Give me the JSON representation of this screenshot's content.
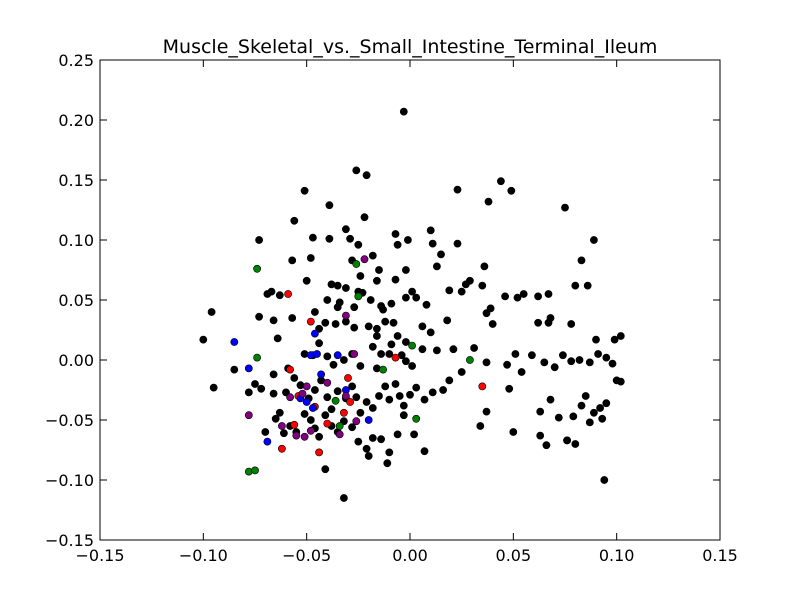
{
  "chart_data": {
    "type": "scatter",
    "title": "Muscle_Skeletal_vs._Small_Intestine_Terminal_Ileum",
    "xlabel": "",
    "ylabel": "",
    "xlim": [
      -0.15,
      0.15
    ],
    "ylim": [
      -0.15,
      0.25
    ],
    "grid": false,
    "x_ticks": [
      -0.15,
      -0.1,
      -0.05,
      0.0,
      0.05,
      0.1,
      0.15
    ],
    "x_tick_labels": [
      "−0.15",
      "−0.10",
      "−0.05",
      "0.00",
      "0.05",
      "0.10",
      "0.15"
    ],
    "y_ticks": [
      -0.15,
      -0.1,
      -0.05,
      0.0,
      0.05,
      0.1,
      0.15,
      0.2,
      0.25
    ],
    "y_tick_labels": [
      "−0.15",
      "−0.10",
      "−0.05",
      "0.00",
      "0.05",
      "0.10",
      "0.15",
      "0.20",
      "0.25"
    ],
    "series": [
      {
        "color": "#000000",
        "points": [
          [
            -0.003,
            0.207
          ],
          [
            -0.026,
            0.158
          ],
          [
            -0.021,
            0.154
          ],
          [
            -0.051,
            0.141
          ],
          [
            -0.039,
            0.129
          ],
          [
            0.044,
            0.149
          ],
          [
            0.023,
            0.142
          ],
          [
            0.049,
            0.141
          ],
          [
            0.038,
            0.132
          ],
          [
            0.075,
            0.127
          ],
          [
            -0.056,
            0.116
          ],
          [
            -0.022,
            0.119
          ],
          [
            -0.039,
            0.101
          ],
          [
            -0.031,
            0.109
          ],
          [
            -0.029,
            0.101
          ],
          [
            -0.025,
            0.096
          ],
          [
            -0.047,
            0.102
          ],
          [
            -0.073,
            0.1
          ],
          [
            -0.007,
            0.105
          ],
          [
            -0.006,
            0.096
          ],
          [
            0.01,
            0.108
          ],
          [
            0.011,
            0.097
          ],
          [
            0.023,
            0.097
          ],
          [
            -0.001,
            0.1
          ],
          [
            0.015,
            0.088
          ],
          [
            0.013,
            0.078
          ],
          [
            0.089,
            0.1
          ],
          [
            0.083,
            0.083
          ],
          [
            -0.057,
            0.083
          ],
          [
            -0.048,
            0.085
          ],
          [
            -0.028,
            0.083
          ],
          [
            -0.018,
            0.087
          ],
          [
            -0.015,
            0.075
          ],
          [
            -0.024,
            0.07
          ],
          [
            -0.016,
            0.066
          ],
          [
            -0.002,
            0.075
          ],
          [
            -0.007,
            0.067
          ],
          [
            0.036,
            0.078
          ],
          [
            0.029,
            0.066
          ],
          [
            0.027,
            0.063
          ],
          [
            0.035,
            0.062
          ],
          [
            0.025,
            0.057
          ],
          [
            0.046,
            0.053
          ],
          [
            0.052,
            0.052
          ],
          [
            0.055,
            0.055
          ],
          [
            0.062,
            0.053
          ],
          [
            0.067,
            0.055
          ],
          [
            0.08,
            0.062
          ],
          [
            0.086,
            0.062
          ],
          [
            -0.067,
            0.057
          ],
          [
            -0.069,
            0.055
          ],
          [
            -0.063,
            0.054
          ],
          [
            -0.05,
            0.066
          ],
          [
            -0.038,
            0.063
          ],
          [
            -0.035,
            0.062
          ],
          [
            -0.031,
            0.06
          ],
          [
            -0.025,
            0.057
          ],
          [
            -0.023,
            0.056
          ],
          [
            -0.04,
            0.05
          ],
          [
            -0.034,
            0.048
          ],
          [
            -0.035,
            0.044
          ],
          [
            -0.027,
            0.044
          ],
          [
            -0.019,
            0.05
          ],
          [
            -0.014,
            0.045
          ],
          [
            -0.013,
            0.042
          ],
          [
            -0.009,
            0.047
          ],
          [
            -0.002,
            0.052
          ],
          [
            0.003,
            0.052
          ],
          [
            0.001,
            0.057
          ],
          [
            0.008,
            0.046
          ],
          [
            0.019,
            0.058
          ],
          [
            0.039,
            0.043
          ],
          [
            0.037,
            0.039
          ],
          [
            0.067,
            0.031
          ],
          [
            0.068,
            0.035
          ],
          [
            0.078,
            0.03
          ],
          [
            -0.1,
            0.017
          ],
          [
            -0.096,
            0.04
          ],
          [
            -0.073,
            0.036
          ],
          [
            -0.066,
            0.033
          ],
          [
            -0.057,
            0.035
          ],
          [
            -0.046,
            0.04
          ],
          [
            -0.044,
            0.026
          ],
          [
            -0.041,
            0.031
          ],
          [
            -0.036,
            0.03
          ],
          [
            -0.031,
            0.032
          ],
          [
            -0.027,
            0.027
          ],
          [
            -0.02,
            0.028
          ],
          [
            -0.016,
            0.02
          ],
          [
            -0.016,
            0.026
          ],
          [
            -0.012,
            0.032
          ],
          [
            -0.008,
            0.031
          ],
          [
            -0.006,
            0.02
          ],
          [
            -0.002,
            0.015
          ],
          [
            0.006,
            0.028
          ],
          [
            0.01,
            0.023
          ],
          [
            0.018,
            0.033
          ],
          [
            0.031,
            0.01
          ],
          [
            0.04,
            0.03
          ],
          [
            0.062,
            0.031
          ],
          [
            0.09,
            0.017
          ],
          [
            0.099,
            0.017
          ],
          [
            0.102,
            0.02
          ],
          [
            -0.095,
            -0.023
          ],
          [
            -0.085,
            -0.008
          ],
          [
            -0.075,
            -0.02
          ],
          [
            -0.066,
            -0.012
          ],
          [
            -0.064,
            0.018
          ],
          [
            -0.059,
            -0.007
          ],
          [
            -0.051,
            0.005
          ],
          [
            -0.047,
            0.004
          ],
          [
            -0.044,
            0.014
          ],
          [
            -0.04,
            0.003
          ],
          [
            -0.037,
            -0.004
          ],
          [
            -0.032,
            0.0
          ],
          [
            -0.028,
            0.005
          ],
          [
            -0.024,
            -0.005
          ],
          [
            -0.018,
            0.011
          ],
          [
            -0.016,
            -0.007
          ],
          [
            -0.014,
            0.005
          ],
          [
            -0.01,
            0.005
          ],
          [
            -0.009,
            0.013
          ],
          [
            -0.004,
            0.004
          ],
          [
            -0.002,
            -0.001
          ],
          [
            0.001,
            -0.005
          ],
          [
            0.006,
            0.009
          ],
          [
            0.013,
            0.008
          ],
          [
            0.021,
            0.009
          ],
          [
            0.025,
            -0.01
          ],
          [
            0.037,
            -0.002
          ],
          [
            0.047,
            -0.004
          ],
          [
            0.051,
            0.005
          ],
          [
            0.054,
            -0.01
          ],
          [
            0.059,
            0.004
          ],
          [
            0.065,
            -0.002
          ],
          [
            0.07,
            -0.006
          ],
          [
            0.074,
            0.004
          ],
          [
            0.078,
            -0.001
          ],
          [
            0.082,
            0.0
          ],
          [
            0.087,
            -0.002
          ],
          [
            0.091,
            0.005
          ],
          [
            0.095,
            0.002
          ],
          [
            0.098,
            -0.003
          ],
          [
            0.1,
            -0.017
          ],
          [
            0.102,
            -0.018
          ],
          [
            -0.078,
            -0.027
          ],
          [
            -0.072,
            -0.024
          ],
          [
            -0.066,
            -0.028
          ],
          [
            -0.063,
            -0.044
          ],
          [
            -0.06,
            -0.027
          ],
          [
            -0.056,
            -0.015
          ],
          [
            -0.053,
            -0.021
          ],
          [
            -0.049,
            -0.032
          ],
          [
            -0.046,
            -0.025
          ],
          [
            -0.043,
            -0.017
          ],
          [
            -0.04,
            -0.031
          ],
          [
            -0.038,
            -0.041
          ],
          [
            -0.035,
            -0.026
          ],
          [
            -0.031,
            -0.032
          ],
          [
            -0.028,
            -0.022
          ],
          [
            -0.026,
            -0.031
          ],
          [
            -0.024,
            -0.044
          ],
          [
            -0.021,
            -0.035
          ],
          [
            -0.018,
            -0.04
          ],
          [
            -0.015,
            -0.03
          ],
          [
            -0.012,
            -0.022
          ],
          [
            -0.01,
            -0.033
          ],
          [
            -0.007,
            -0.02
          ],
          [
            -0.005,
            -0.03
          ],
          [
            -0.003,
            -0.038
          ],
          [
            0.0,
            -0.029
          ],
          [
            0.003,
            -0.023
          ],
          [
            0.007,
            -0.033
          ],
          [
            0.011,
            -0.027
          ],
          [
            0.016,
            -0.025
          ],
          [
            0.019,
            -0.017
          ],
          [
            0.034,
            -0.055
          ],
          [
            0.037,
            -0.043
          ],
          [
            0.048,
            -0.024
          ],
          [
            0.05,
            -0.06
          ],
          [
            0.063,
            -0.043
          ],
          [
            0.066,
            -0.071
          ],
          [
            0.063,
            -0.063
          ],
          [
            0.068,
            -0.033
          ],
          [
            0.072,
            -0.048
          ],
          [
            0.076,
            -0.067
          ],
          [
            0.079,
            -0.047
          ],
          [
            0.083,
            -0.038
          ],
          [
            0.085,
            -0.03
          ],
          [
            0.087,
            -0.052
          ],
          [
            0.089,
            -0.044
          ],
          [
            0.092,
            -0.04
          ],
          [
            0.093,
            -0.049
          ],
          [
            0.095,
            -0.036
          ],
          [
            -0.07,
            -0.06
          ],
          [
            -0.065,
            -0.049
          ],
          [
            -0.061,
            -0.061
          ],
          [
            -0.058,
            -0.055
          ],
          [
            -0.055,
            -0.06
          ],
          [
            -0.051,
            -0.045
          ],
          [
            -0.048,
            -0.05
          ],
          [
            -0.046,
            -0.057
          ],
          [
            -0.044,
            -0.064
          ],
          [
            -0.041,
            -0.046
          ],
          [
            -0.038,
            -0.055
          ],
          [
            -0.035,
            -0.06
          ],
          [
            -0.032,
            -0.051
          ],
          [
            -0.028,
            -0.056
          ],
          [
            -0.025,
            -0.068
          ],
          [
            -0.021,
            -0.074
          ],
          [
            -0.018,
            -0.065
          ],
          [
            -0.014,
            -0.066
          ],
          [
            -0.01,
            -0.077
          ],
          [
            -0.006,
            -0.062
          ],
          [
            -0.003,
            -0.046
          ],
          [
            0.002,
            -0.062
          ],
          [
            0.007,
            -0.076
          ],
          [
            -0.041,
            -0.091
          ],
          [
            -0.032,
            -0.115
          ],
          [
            -0.02,
            -0.08
          ],
          [
            -0.011,
            -0.086
          ],
          [
            0.094,
            -0.1
          ],
          [
            0.08,
            -0.07
          ],
          [
            0.076,
            -0.067
          ]
        ]
      },
      {
        "color": "#ff0000",
        "points": [
          [
            -0.059,
            0.055
          ],
          [
            -0.048,
            0.032
          ],
          [
            -0.058,
            -0.008
          ],
          [
            -0.054,
            -0.03
          ],
          [
            -0.046,
            -0.039
          ],
          [
            -0.056,
            -0.054
          ],
          [
            -0.04,
            -0.053
          ],
          [
            -0.044,
            -0.077
          ],
          [
            -0.03,
            -0.015
          ],
          [
            -0.029,
            -0.035
          ],
          [
            -0.062,
            -0.074
          ],
          [
            -0.032,
            -0.044
          ],
          [
            -0.007,
            0.002
          ],
          [
            0.035,
            -0.022
          ]
        ]
      },
      {
        "color": "#0000ff",
        "points": [
          [
            -0.085,
            0.015
          ],
          [
            -0.078,
            -0.007
          ],
          [
            -0.069,
            -0.068
          ],
          [
            -0.046,
            0.022
          ],
          [
            -0.048,
            0.004
          ],
          [
            -0.045,
            0.005
          ],
          [
            -0.043,
            -0.012
          ],
          [
            -0.035,
            0.004
          ],
          [
            -0.031,
            -0.025
          ],
          [
            -0.053,
            -0.032
          ],
          [
            -0.05,
            -0.035
          ],
          [
            -0.047,
            -0.04
          ],
          [
            -0.02,
            -0.05
          ]
        ]
      },
      {
        "color": "#008000",
        "points": [
          [
            -0.074,
            0.076
          ],
          [
            -0.074,
            0.002
          ],
          [
            -0.026,
            0.08
          ],
          [
            -0.025,
            0.053
          ],
          [
            -0.036,
            -0.034
          ],
          [
            -0.034,
            -0.055
          ],
          [
            -0.013,
            -0.008
          ],
          [
            0.001,
            0.012
          ],
          [
            0.003,
            -0.049
          ],
          [
            0.029,
            0.0
          ],
          [
            -0.078,
            -0.093
          ],
          [
            -0.075,
            -0.092
          ]
        ]
      },
      {
        "color": "#800080",
        "points": [
          [
            -0.022,
            0.084
          ],
          [
            -0.031,
            0.037
          ],
          [
            -0.027,
            0.005
          ],
          [
            -0.05,
            -0.022
          ],
          [
            -0.04,
            -0.019
          ],
          [
            -0.052,
            -0.028
          ],
          [
            -0.058,
            -0.031
          ],
          [
            -0.078,
            -0.046
          ],
          [
            -0.062,
            -0.055
          ],
          [
            -0.051,
            -0.064
          ],
          [
            -0.034,
            -0.062
          ],
          [
            -0.048,
            -0.059
          ],
          [
            -0.031,
            -0.03
          ],
          [
            -0.026,
            -0.051
          ],
          [
            -0.055,
            -0.063
          ]
        ]
      }
    ]
  }
}
